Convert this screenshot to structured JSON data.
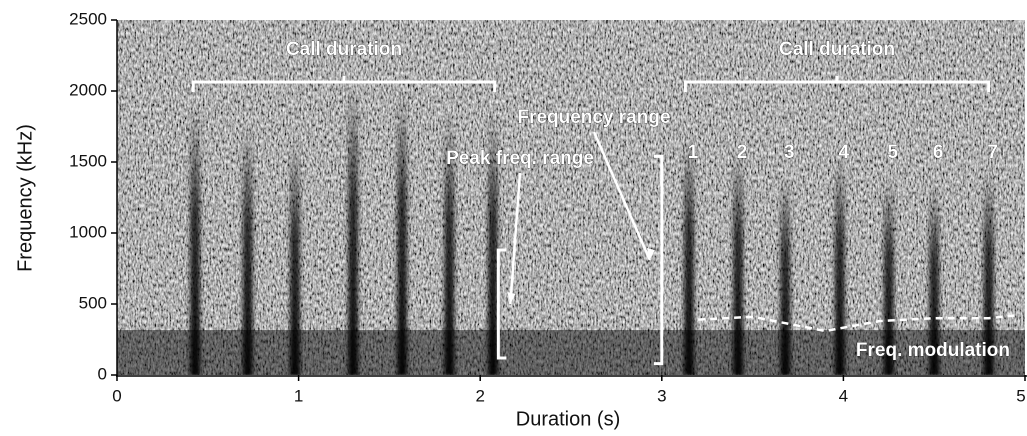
{
  "chart_data": {
    "type": "spectrogram",
    "x_label": "Duration (s)",
    "y_label": "Frequency (kHz)",
    "xlim": [
      0,
      5
    ],
    "xticks": [
      0,
      1,
      2,
      3,
      4,
      5
    ],
    "ylim": [
      0,
      2500
    ],
    "yticks": [
      0,
      500,
      1000,
      1500,
      2000,
      2500
    ],
    "pulses": {
      "x": [
        0.43,
        0.72,
        0.98,
        1.3,
        1.57,
        1.83,
        2.07,
        3.15,
        3.42,
        3.68,
        3.98,
        4.25,
        4.5,
        4.8
      ],
      "values": [
        1900,
        1750,
        1650,
        2050,
        2000,
        1850,
        1850,
        1700,
        1600,
        1400,
        1550,
        1400,
        1350,
        1450
      ]
    },
    "calls": [
      {
        "label": "Call duration",
        "start": 0.42,
        "end": 2.08
      },
      {
        "label": "Call duration",
        "start": 3.13,
        "end": 4.8
      }
    ],
    "pulse_numbers": {
      "labels": [
        "1",
        "2",
        "3",
        "4",
        "5",
        "6",
        "7"
      ],
      "x": [
        3.15,
        3.42,
        3.68,
        3.98,
        4.25,
        4.5,
        4.8
      ]
    },
    "frequency_range": {
      "label": "Frequency range",
      "x": 3.0,
      "low": 80,
      "high": 1540
    },
    "peak_frequency_range": {
      "label": "Peak freq. range",
      "x": 2.1,
      "low": 120,
      "high": 880
    },
    "frequency_modulation": {
      "label": "Freq. modulation",
      "x": [
        3.2,
        3.5,
        3.7,
        3.9,
        4.2,
        4.5,
        4.8,
        4.95
      ],
      "values": [
        390,
        410,
        360,
        310,
        380,
        400,
        400,
        420
      ]
    }
  }
}
